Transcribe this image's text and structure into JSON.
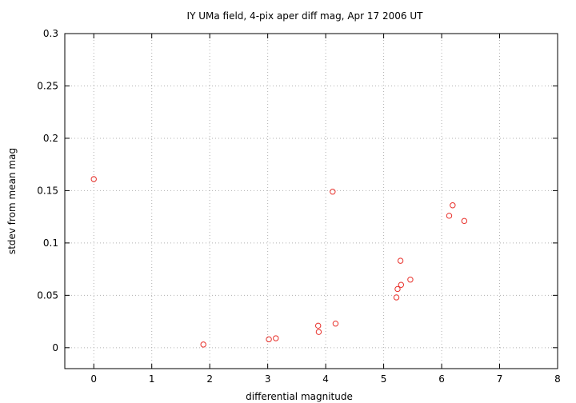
{
  "chart_data": {
    "type": "scatter",
    "title": "IY UMa field,  4-pix aper diff mag, Apr 17 2006 UT",
    "xlabel": "differential magnitude",
    "ylabel": "stdev from mean mag",
    "xlim": [
      -0.5,
      8
    ],
    "ylim": [
      -0.02,
      0.3
    ],
    "xticks": [
      "0",
      "1",
      "2",
      "3",
      "4",
      "5",
      "6",
      "7",
      "8"
    ],
    "xtick_values": [
      0,
      1,
      2,
      3,
      4,
      5,
      6,
      7,
      8
    ],
    "yticks": [
      "0",
      "0.05",
      "0.1",
      "0.15",
      "0.2",
      "0.25",
      "0.3"
    ],
    "ytick_values": [
      0,
      0.05,
      0.1,
      0.15,
      0.2,
      0.25,
      0.3
    ],
    "grid": true,
    "marker_color": "#e8302a",
    "points": [
      {
        "x": 0.0,
        "y": 0.161
      },
      {
        "x": 1.89,
        "y": 0.003
      },
      {
        "x": 3.02,
        "y": 0.008
      },
      {
        "x": 3.14,
        "y": 0.009
      },
      {
        "x": 3.87,
        "y": 0.021
      },
      {
        "x": 3.88,
        "y": 0.015
      },
      {
        "x": 4.12,
        "y": 0.149
      },
      {
        "x": 4.17,
        "y": 0.023
      },
      {
        "x": 5.22,
        "y": 0.048
      },
      {
        "x": 5.24,
        "y": 0.056
      },
      {
        "x": 5.29,
        "y": 0.083
      },
      {
        "x": 5.3,
        "y": 0.06
      },
      {
        "x": 5.46,
        "y": 0.065
      },
      {
        "x": 6.13,
        "y": 0.126
      },
      {
        "x": 6.19,
        "y": 0.136
      },
      {
        "x": 6.39,
        "y": 0.121
      }
    ]
  }
}
